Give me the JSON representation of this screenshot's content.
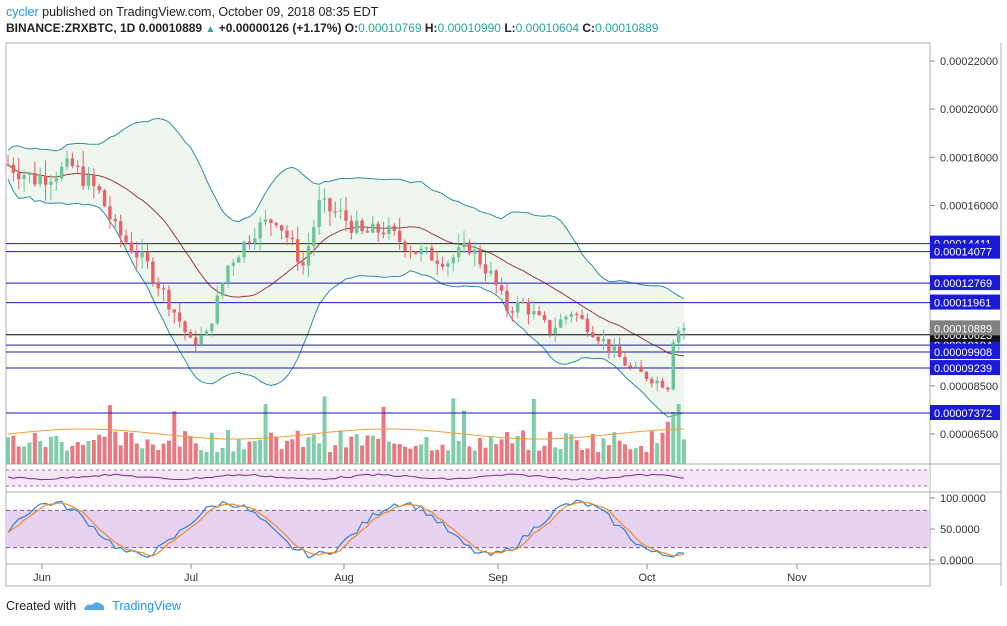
{
  "header": {
    "author": "cycler",
    "published_text": "published on TradingView.com, October 09, 2018 08:35 EDT",
    "symbol": "BINANCE:ZRXBTC, 1D",
    "last": "0.00010889",
    "arrow": "▲",
    "change": "+0.00000126 (+1.17%)",
    "o_label": "O:",
    "o_value": "0.00010769",
    "h_label": "H:",
    "h_value": "0.00010990",
    "l_label": "L:",
    "l_value": "0.00010604",
    "c_label": "C:",
    "c_value": "0.00010889"
  },
  "price_axis": {
    "ticks": [
      "0.00022000",
      "0.00020000",
      "0.00018000",
      "0.00016000",
      "0.00008500",
      "0.00006500"
    ],
    "level_labels": [
      "0.00014411",
      "0.00014077",
      "0.00012769",
      "0.00011961",
      "0.00010194",
      "0.00009908",
      "0.00009239",
      "0.00007372"
    ],
    "last_price_label": "0.00010889",
    "black_line_label": "0.00010623"
  },
  "osc_axis": {
    "ticks": [
      "100.0000",
      "50.0000",
      "0.0000"
    ]
  },
  "time_axis": {
    "labels": [
      "Jun",
      "Jul",
      "Aug",
      "Sep",
      "Oct",
      "Nov"
    ]
  },
  "footer": {
    "created_with": "Created with",
    "brand": "TradingView"
  },
  "colors": {
    "bull": "#6cc49a",
    "bear": "#e8606a",
    "level_line": "#1a1ab0",
    "level_label_bg": "#1a1ad6",
    "bollinger_fill": "#eef6ee",
    "bollinger_line": "#2f8fa0",
    "ma_line": "#9b3b3b"
  },
  "chart_data": {
    "type": "candlestick",
    "symbol": "BINANCE:ZRXBTC",
    "interval": "1D",
    "horizontal_levels": [
      0.00014411,
      0.00014077,
      0.00012769,
      0.00011961,
      0.00010194,
      9.908e-05,
      9.239e-05,
      7.372e-05
    ],
    "last_close": 0.00010889,
    "black_line": 0.00010623,
    "oscillator_range": [
      0,
      100
    ],
    "oscillator_bands": [
      20,
      80
    ]
  }
}
